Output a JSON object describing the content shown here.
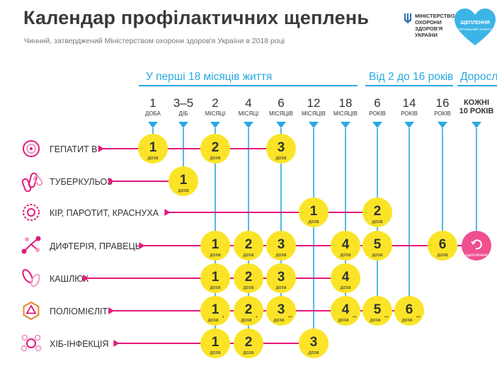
{
  "header": {
    "title": "Календар профілактичних щеплень",
    "subtitle": "Чинний, затверджений Міністерством охорони здоров'я України в 2018 році"
  },
  "ministry": {
    "lines": [
      "МІНІСТЕРСТВО",
      "ОХОРОНИ",
      "ЗДОРОВ'Я",
      "УКРАЇНИ"
    ]
  },
  "badge": {
    "line1": "ЩЕПЛЕННЯ",
    "line2": "#ЯСИЛЬНИЙ ЗАХИСТ"
  },
  "age_groups": [
    {
      "label": "У перші 18 місяців життя",
      "columns": [
        0,
        1,
        2,
        3,
        4,
        5,
        6
      ]
    },
    {
      "label": "Від 2 до 16 років",
      "columns": [
        7,
        8,
        9
      ]
    },
    {
      "label": "Дорослі",
      "columns": [
        10
      ]
    }
  ],
  "columns": [
    {
      "num": "1",
      "unit": "ДОБА"
    },
    {
      "num": "3–5",
      "unit": "ДІБ"
    },
    {
      "num": "2",
      "unit": "МІСЯЦІ"
    },
    {
      "num": "4",
      "unit": "МІСЯЦІ"
    },
    {
      "num": "6",
      "unit": "МІСЯЦІВ"
    },
    {
      "num": "12",
      "unit": "МІСЯЦІВ"
    },
    {
      "num": "18",
      "unit": "МІСЯЦІВ"
    },
    {
      "num": "6",
      "unit": "РОКІВ"
    },
    {
      "num": "14",
      "unit": "РОКІВ"
    },
    {
      "num": "16",
      "unit": "РОКІВ"
    },
    {
      "num": "КОЖНІ",
      "unit": "10 РОКІВ"
    }
  ],
  "dose_word": "доза",
  "revaccination_label": "щеплення",
  "colors": {
    "blue": "#27a9e1",
    "magenta": "#e4187b",
    "yellow": "#fbe427",
    "pink": "#f0508e"
  },
  "diseases": [
    {
      "name": "ГЕПАТИТ B",
      "icon": "hepatitis-b-virus-icon",
      "doses": [
        {
          "col": 0,
          "n": "1",
          "mark": ""
        },
        {
          "col": 2,
          "n": "2",
          "mark": ""
        },
        {
          "col": 4,
          "n": "3",
          "mark": ""
        }
      ]
    },
    {
      "name": "ТУБЕРКУЛЬОЗ",
      "icon": "tuberculosis-bacteria-icon",
      "doses": [
        {
          "col": 1,
          "n": "1",
          "mark": ""
        }
      ]
    },
    {
      "name": "КІР, ПАРОТИТ, КРАСНУХА",
      "icon": "measles-virus-icon",
      "doses": [
        {
          "col": 5,
          "n": "1",
          "mark": ""
        },
        {
          "col": 7,
          "n": "2",
          "mark": ""
        }
      ]
    },
    {
      "name": "ДИФТЕРІЯ, ПРАВЕЦЬ",
      "icon": "diphtheria-bacteria-icon",
      "doses": [
        {
          "col": 2,
          "n": "1",
          "mark": ""
        },
        {
          "col": 3,
          "n": "2",
          "mark": ""
        },
        {
          "col": 4,
          "n": "3",
          "mark": ""
        },
        {
          "col": 6,
          "n": "4",
          "mark": ""
        },
        {
          "col": 7,
          "n": "5",
          "mark": ""
        },
        {
          "col": 9,
          "n": "6",
          "mark": ""
        }
      ],
      "revaccination_col": 10
    },
    {
      "name": "КАШЛЮК",
      "icon": "pertussis-bacteria-icon",
      "doses": [
        {
          "col": 2,
          "n": "1",
          "mark": ""
        },
        {
          "col": 3,
          "n": "2",
          "mark": ""
        },
        {
          "col": 4,
          "n": "3",
          "mark": ""
        },
        {
          "col": 6,
          "n": "4",
          "mark": ""
        }
      ]
    },
    {
      "name": "ПОЛІОМІЄЛІТ",
      "icon": "polio-virus-icon",
      "doses": [
        {
          "col": 2,
          "n": "1",
          "mark": "*"
        },
        {
          "col": 3,
          "n": "2",
          "mark": "*"
        },
        {
          "col": 4,
          "n": "3",
          "mark": "**"
        },
        {
          "col": 6,
          "n": "4",
          "mark": "**"
        },
        {
          "col": 7,
          "n": "5",
          "mark": "**"
        },
        {
          "col": 8,
          "n": "6",
          "mark": "**"
        }
      ]
    },
    {
      "name": "ХІБ-ІНФЕКЦІЯ",
      "icon": "hib-infection-icon",
      "doses": [
        {
          "col": 2,
          "n": "1",
          "mark": ""
        },
        {
          "col": 3,
          "n": "2",
          "mark": ""
        },
        {
          "col": 5,
          "n": "3",
          "mark": ""
        }
      ]
    }
  ]
}
